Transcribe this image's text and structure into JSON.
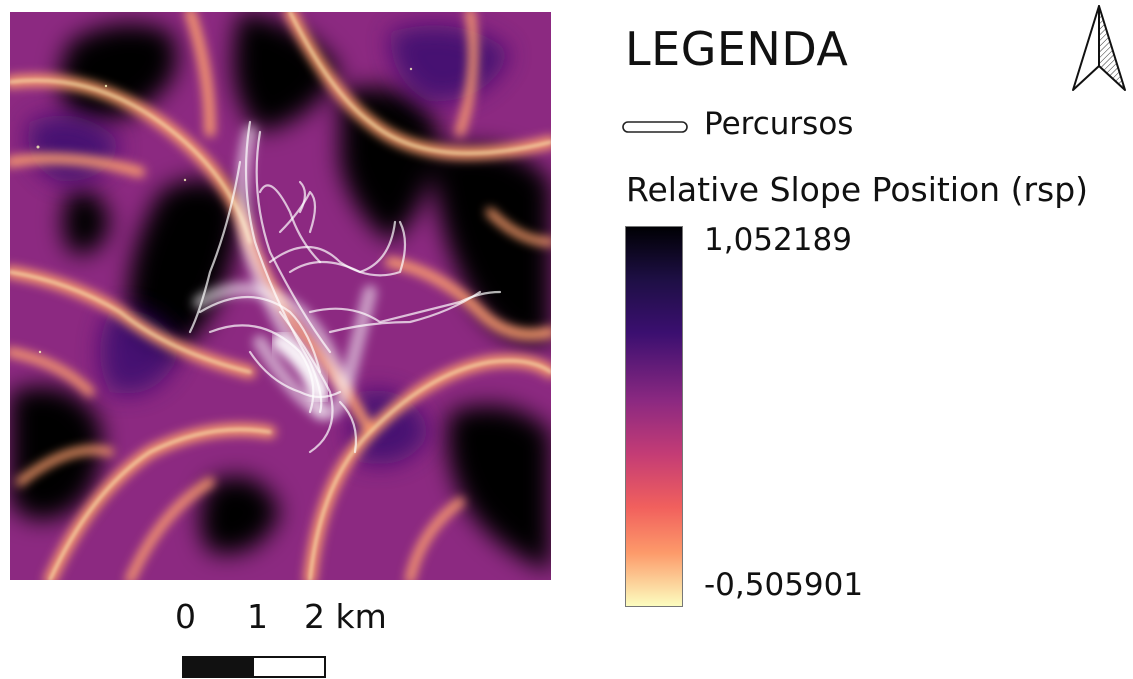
{
  "legend": {
    "title": "LEGENDA",
    "layers": [
      {
        "label": "Percursos",
        "symbol": "white-line-icon"
      }
    ],
    "raster": {
      "title": "Relative Slope Position (rsp)",
      "max_label": "1,052189",
      "min_label": "-0,505901",
      "colormap": "magma-reversed"
    }
  },
  "scale_bar": {
    "labels": [
      "0",
      "1",
      "2 km"
    ]
  },
  "north_arrow": {
    "icon": "north-arrow-icon"
  },
  "map": {
    "palette": [
      "#000004",
      "#3b0f70",
      "#8c2981",
      "#de4968",
      "#fe9f6d",
      "#fcfdbf"
    ],
    "track_color": "#ffffff"
  }
}
